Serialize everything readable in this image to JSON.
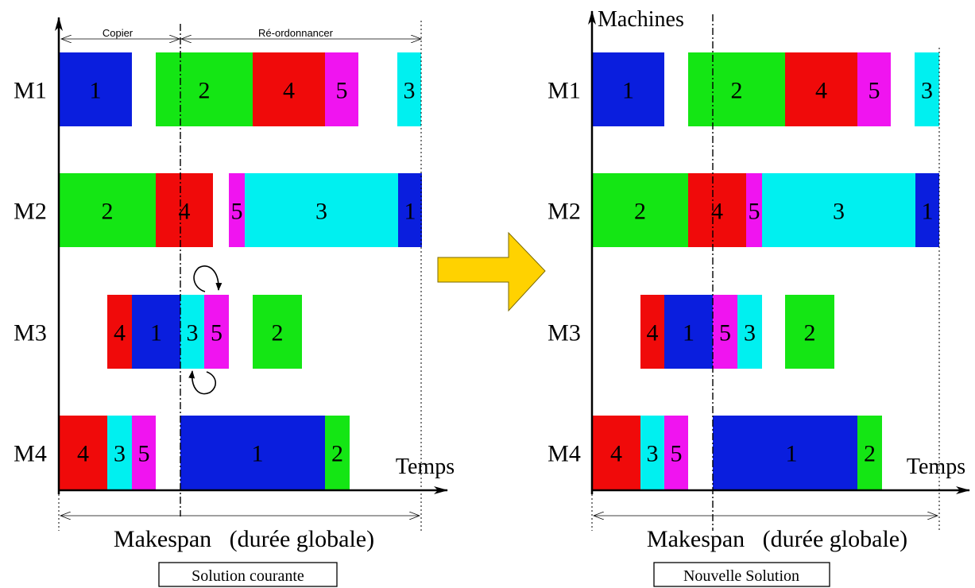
{
  "colors": {
    "1": "#0a1ede",
    "2": "#14e614",
    "3": "#00f0f0",
    "4": "#f00a0a",
    "5": "#f014f0",
    "arrow": "#ffd200"
  },
  "left": {
    "phase_copy": "Copier",
    "phase_reorder": "Ré-ordonnancer",
    "time_label": "Temps",
    "makespan_label": "Makespan   (durée globale)",
    "caption": "Solution courante",
    "machines": [
      {
        "label": "M1",
        "jobs": [
          {
            "job": "1",
            "text": "1"
          },
          {
            "job": "2",
            "text": "2"
          },
          {
            "job": "4",
            "text": "4"
          },
          {
            "job": "5",
            "text": "5"
          },
          {
            "job": "3",
            "text": "3"
          }
        ]
      },
      {
        "label": "M2",
        "jobs": [
          {
            "job": "2",
            "text": "2"
          },
          {
            "job": "4",
            "text": "4"
          },
          {
            "job": "5",
            "text": "5"
          },
          {
            "job": "3",
            "text": "3"
          },
          {
            "job": "1",
            "text": "1"
          }
        ]
      },
      {
        "label": "M3",
        "jobs": [
          {
            "job": "4",
            "text": "4"
          },
          {
            "job": "1",
            "text": "1"
          },
          {
            "job": "3",
            "text": "3"
          },
          {
            "job": "5",
            "text": "5"
          },
          {
            "job": "2",
            "text": "2"
          }
        ]
      },
      {
        "label": "M4",
        "jobs": [
          {
            "job": "4",
            "text": "4"
          },
          {
            "job": "3",
            "text": "3"
          },
          {
            "job": "5",
            "text": "5"
          },
          {
            "job": "1",
            "text": "1"
          },
          {
            "job": "2",
            "text": "2"
          }
        ]
      }
    ]
  },
  "right": {
    "machines_axis_label": "Machines",
    "time_label": "Temps",
    "makespan_label": "Makespan   (durée globale)",
    "caption": "Nouvelle Solution",
    "machines": [
      {
        "label": "M1",
        "jobs": [
          {
            "job": "1",
            "text": "1"
          },
          {
            "job": "2",
            "text": "2"
          },
          {
            "job": "4",
            "text": "4"
          },
          {
            "job": "5",
            "text": "5"
          },
          {
            "job": "3",
            "text": "3"
          }
        ]
      },
      {
        "label": "M2",
        "jobs": [
          {
            "job": "2",
            "text": "2"
          },
          {
            "job": "4",
            "text": "4"
          },
          {
            "job": "5",
            "text": "5"
          },
          {
            "job": "3",
            "text": "3"
          },
          {
            "job": "1",
            "text": "1"
          }
        ]
      },
      {
        "label": "M3",
        "jobs": [
          {
            "job": "4",
            "text": "4"
          },
          {
            "job": "1",
            "text": "1"
          },
          {
            "job": "5",
            "text": "5"
          },
          {
            "job": "3",
            "text": "3"
          },
          {
            "job": "2",
            "text": "2"
          }
        ]
      },
      {
        "label": "M4",
        "jobs": [
          {
            "job": "4",
            "text": "4"
          },
          {
            "job": "3",
            "text": "3"
          },
          {
            "job": "5",
            "text": "5"
          },
          {
            "job": "1",
            "text": "1"
          },
          {
            "job": "2",
            "text": "2"
          }
        ]
      }
    ]
  }
}
